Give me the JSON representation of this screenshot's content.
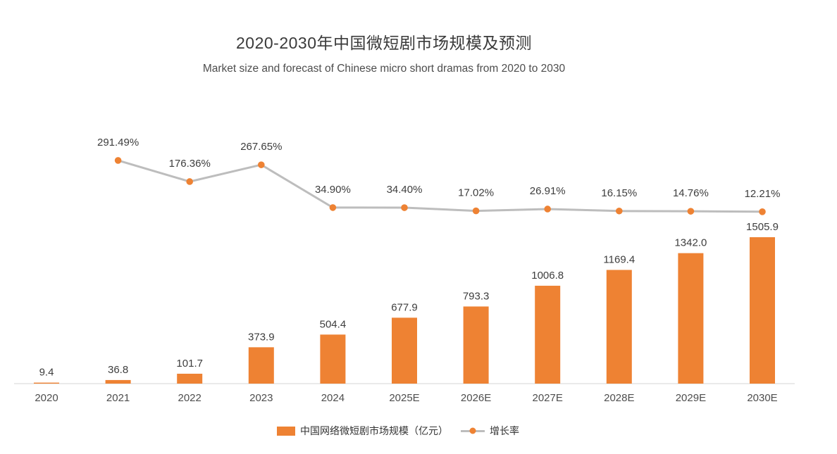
{
  "title": "2020-2030年中国微短剧市场规模及预测",
  "subtitle": "Market size and forecast of Chinese micro short dramas from 2020 to 2030",
  "colors": {
    "bar": "#EE8233",
    "line": "#BDBDBD",
    "marker": "#EE8233",
    "axis": "#D6D6D6",
    "bar_label": "#3d3d3d",
    "pct_label": "#3d3d3d",
    "x_label": "#4d4d4d"
  },
  "legend": [
    {
      "label": "中国网络微短剧市场规模（亿元）"
    },
    {
      "label": "增长率"
    }
  ],
  "chart_data": {
    "type": "bar+line",
    "title": "2020-2030年中国微短剧市场规模及预测",
    "subtitle": "Market size and forecast of Chinese micro short dramas from 2020 to 2030",
    "categories": [
      "2020",
      "2021",
      "2022",
      "2023",
      "2024",
      "2025E",
      "2026E",
      "2027E",
      "2028E",
      "2029E",
      "2030E"
    ],
    "series": [
      {
        "name": "中国网络微短剧市场规模（亿元）",
        "type": "bar",
        "unit": "亿元",
        "values": [
          9.4,
          36.8,
          101.7,
          373.9,
          504.4,
          677.9,
          793.3,
          1006.8,
          1169.4,
          1342.0,
          1505.9
        ],
        "labels": [
          "9.4",
          "36.8",
          "101.7",
          "373.9",
          "504.4",
          "677.9",
          "793.3",
          "1006.8",
          "1169.4",
          "1342.0",
          "1505.9"
        ]
      },
      {
        "name": "增长率",
        "type": "line",
        "unit": "%",
        "values": [
          null,
          291.49,
          176.36,
          267.65,
          34.9,
          34.4,
          17.02,
          26.91,
          16.15,
          14.76,
          12.21
        ],
        "labels": [
          "",
          "291.49%",
          "176.36%",
          "267.65%",
          "34.90%",
          "34.40%",
          "17.02%",
          "26.91%",
          "16.15%",
          "14.76%",
          "12.21%"
        ]
      }
    ],
    "xlabel": "",
    "ylabel": "",
    "y_axis_visible": false,
    "grid": false,
    "legend_position": "bottom"
  }
}
